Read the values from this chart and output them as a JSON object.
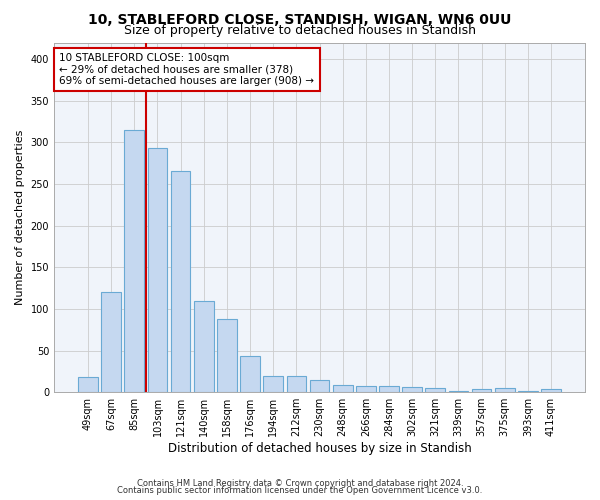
{
  "title1": "10, STABLEFORD CLOSE, STANDISH, WIGAN, WN6 0UU",
  "title2": "Size of property relative to detached houses in Standish",
  "xlabel": "Distribution of detached houses by size in Standish",
  "ylabel": "Number of detached properties",
  "categories": [
    "49sqm",
    "67sqm",
    "85sqm",
    "103sqm",
    "121sqm",
    "140sqm",
    "158sqm",
    "176sqm",
    "194sqm",
    "212sqm",
    "230sqm",
    "248sqm",
    "266sqm",
    "284sqm",
    "302sqm",
    "321sqm",
    "339sqm",
    "357sqm",
    "375sqm",
    "393sqm",
    "411sqm"
  ],
  "values": [
    18,
    120,
    315,
    293,
    266,
    110,
    88,
    44,
    20,
    20,
    15,
    9,
    8,
    7,
    6,
    5,
    2,
    4,
    5,
    2,
    4
  ],
  "bar_color": "#c5d8f0",
  "bar_edge_color": "#6aaad4",
  "vline_color": "#cc0000",
  "annotation_text": "10 STABLEFORD CLOSE: 100sqm\n← 29% of detached houses are smaller (378)\n69% of semi-detached houses are larger (908) →",
  "annotation_box_color": "#ffffff",
  "annotation_box_edge": "#cc0000",
  "ylim": [
    0,
    420
  ],
  "yticks": [
    0,
    50,
    100,
    150,
    200,
    250,
    300,
    350,
    400
  ],
  "grid_color": "#cccccc",
  "bg_color": "#ffffff",
  "plot_bg_color": "#f0f4fa",
  "footer1": "Contains HM Land Registry data © Crown copyright and database right 2024.",
  "footer2": "Contains public sector information licensed under the Open Government Licence v3.0.",
  "title1_fontsize": 10,
  "title2_fontsize": 9,
  "xlabel_fontsize": 8.5,
  "ylabel_fontsize": 8,
  "tick_fontsize": 7,
  "footer_fontsize": 6,
  "annotation_fontsize": 7.5
}
